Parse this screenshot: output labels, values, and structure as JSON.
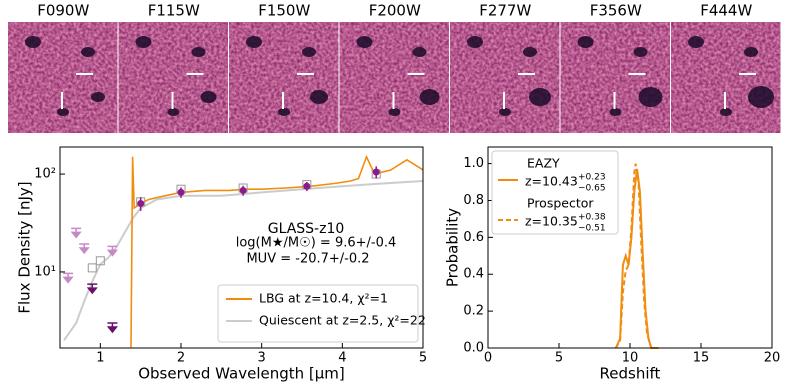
{
  "panels": {
    "filters": [
      "F090W",
      "F115W",
      "F150W",
      "F200W",
      "F277W",
      "F356W",
      "F444W"
    ]
  },
  "chart_data": [
    {
      "type": "sed",
      "xlabel": "Observed Wavelength [μm]",
      "ylabel": "Flux Density [nJy]",
      "xlim": [
        0.5,
        5
      ],
      "xticks": [
        1,
        2,
        3,
        4,
        5
      ],
      "log_y": true,
      "ylim": [
        1.67,
        189
      ],
      "yticks": [
        {
          "value": 10,
          "label": "10¹"
        },
        {
          "value": 100,
          "label": "10²"
        }
      ],
      "annotations": [
        "GLASS-z10",
        "log(M★/M☉) = 9.6+/-0.4",
        "MUV = -20.7+/-0.2"
      ],
      "legend": "lower right",
      "series": [
        {
          "name": "LBG at z=10.4, χ²=1",
          "color": "#f28c0f",
          "x": [
            1.38,
            1.4,
            1.42,
            1.5,
            1.6,
            1.8,
            2.0,
            2.3,
            2.6,
            2.8,
            3.0,
            3.3,
            3.6,
            3.9,
            4.1,
            4.2,
            4.3,
            4.4,
            4.6,
            4.8,
            5.0
          ],
          "values": [
            1.7,
            150,
            45,
            50,
            55,
            60,
            65,
            68,
            68,
            70,
            70,
            72,
            75,
            80,
            85,
            90,
            150,
            100,
            110,
            140,
            110
          ]
        },
        {
          "name": "Quiescent at z=2.5, χ²=22",
          "color": "#cccccc",
          "x": [
            0.55,
            0.6,
            0.7,
            0.8,
            0.9,
            1.0,
            1.1,
            1.2,
            1.3,
            1.4,
            1.5,
            1.7,
            2.0,
            2.5,
            3.0,
            3.5,
            4.0,
            4.5,
            5.0
          ],
          "values": [
            2.0,
            2.3,
            3,
            5,
            8,
            12,
            14,
            18,
            25,
            35,
            45,
            55,
            60,
            60,
            65,
            70,
            75,
            80,
            85
          ]
        }
      ],
      "model_points": {
        "color": "#999999",
        "x": [
          0.9,
          1.0,
          1.5,
          2.0,
          2.77,
          3.56,
          4.42
        ],
        "values": [
          11,
          13,
          52,
          70,
          72,
          78,
          100
        ]
      },
      "photometry": {
        "color": "#8b1a8b",
        "x": [
          1.5,
          2.0,
          2.77,
          3.56,
          4.42
        ],
        "values": [
          50,
          65,
          68,
          75,
          105
        ],
        "errors": [
          8,
          8,
          8,
          8,
          15
        ]
      },
      "upper_limits": {
        "color": "#6a0f6a",
        "x": [
          0.9,
          1.15
        ],
        "values": [
          7,
          2.8
        ]
      },
      "faint_limits": {
        "color": "#c58ac5",
        "x": [
          0.6,
          0.7,
          0.8,
          1.15
        ],
        "values": [
          9,
          26,
          18,
          17
        ]
      }
    },
    {
      "type": "line",
      "xlabel": "Redshift",
      "ylabel": "Probability",
      "xlim": [
        0,
        20
      ],
      "xticks": [
        0,
        5,
        10,
        15,
        20
      ],
      "ylim": [
        0,
        1.09
      ],
      "yticks": [
        {
          "value": 0,
          "label": "0.0"
        },
        {
          "value": 0.2,
          "label": "0.2"
        },
        {
          "value": 0.4,
          "label": "0.4"
        },
        {
          "value": 0.6,
          "label": "0.6"
        },
        {
          "value": 0.8,
          "label": "0.8"
        },
        {
          "value": 1.0,
          "label": "1.0"
        }
      ],
      "legend": "upper left",
      "series": [
        {
          "name": "EAZY",
          "label": "z=10.43",
          "upper": "+0.23",
          "lower": "−0.65",
          "color": "#f28c0f",
          "dash": false,
          "x": [
            9,
            9.3,
            9.5,
            9.7,
            9.9,
            10.1,
            10.3,
            10.5,
            10.7,
            10.9,
            11.1,
            11.3,
            11.5,
            12
          ],
          "values": [
            0,
            0.05,
            0.45,
            0.5,
            0.45,
            0.6,
            0.85,
            0.97,
            0.85,
            0.5,
            0.2,
            0.05,
            0,
            0
          ]
        },
        {
          "name": "Prospector",
          "label": "z=10.35",
          "upper": "+0.38",
          "lower": "−0.51",
          "color": "#f28c0f",
          "dash": true,
          "x": [
            9,
            9.3,
            9.5,
            9.7,
            9.9,
            10.1,
            10.3,
            10.4,
            10.6,
            10.8,
            11.0,
            11.2,
            11.5,
            12
          ],
          "values": [
            0,
            0.04,
            0.3,
            0.42,
            0.45,
            0.65,
            0.95,
            1.0,
            0.9,
            0.55,
            0.25,
            0.08,
            0,
            0
          ]
        }
      ]
    }
  ]
}
